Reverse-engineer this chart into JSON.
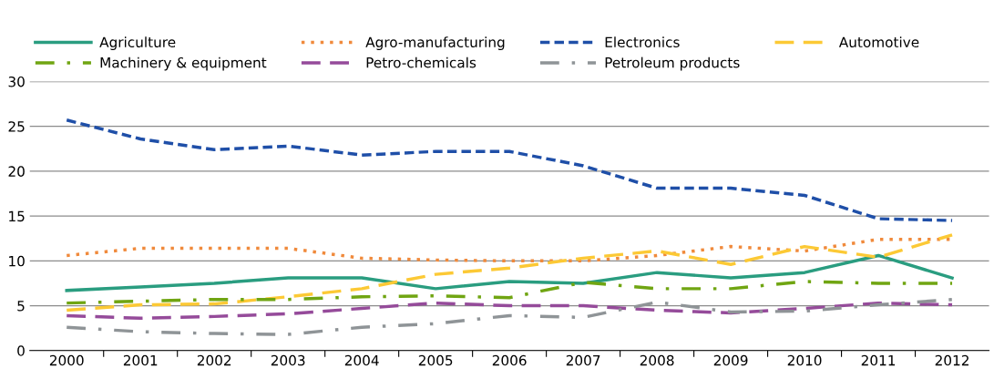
{
  "chart_data": {
    "type": "line",
    "categories": [
      "2000",
      "2001",
      "2002",
      "2003",
      "2004",
      "2005",
      "2006",
      "2007",
      "2008",
      "2009",
      "2010",
      "2011",
      "2012"
    ],
    "ylim": [
      0,
      30
    ],
    "yticks": [
      0,
      5,
      10,
      15,
      20,
      25,
      30
    ],
    "grid": "y",
    "legend": "top",
    "marker": "none",
    "series": [
      {
        "name": "Agriculture",
        "color": "#2a9d80",
        "line_style": "solid",
        "values": [
          6.7,
          7.1,
          7.5,
          8.1,
          8.1,
          6.9,
          7.7,
          7.5,
          8.7,
          8.1,
          8.7,
          10.6,
          8.1
        ]
      },
      {
        "name": "Agro-manufacturing",
        "color": "#f08a3c",
        "line_style": "dotted",
        "values": [
          10.6,
          11.4,
          11.4,
          11.4,
          10.3,
          10.1,
          10.0,
          10.0,
          10.6,
          11.6,
          11.1,
          12.4,
          12.4
        ]
      },
      {
        "name": "Electronics",
        "color": "#1f4fa8",
        "line_style": "dashed",
        "values": [
          25.7,
          23.6,
          22.4,
          22.8,
          21.8,
          22.2,
          22.2,
          20.6,
          18.1,
          18.1,
          17.3,
          14.7,
          14.5
        ]
      },
      {
        "name": "Automotive",
        "color": "#fcc935",
        "line_style": "longdash",
        "values": [
          4.5,
          5.1,
          5.2,
          6.0,
          6.9,
          8.5,
          9.2,
          10.3,
          11.1,
          9.6,
          11.6,
          10.4,
          12.9
        ]
      },
      {
        "name": "Machinery & equipment",
        "color": "#70a512",
        "line_style": "dashdot",
        "values": [
          5.3,
          5.5,
          5.7,
          5.7,
          6.0,
          6.1,
          5.9,
          7.6,
          6.9,
          6.9,
          7.7,
          7.5,
          7.5
        ]
      },
      {
        "name": "Petro-chemicals",
        "color": "#954b9a",
        "line_style": "longdash",
        "values": [
          3.9,
          3.6,
          3.8,
          4.1,
          4.7,
          5.3,
          5.0,
          5.0,
          4.5,
          4.2,
          4.7,
          5.3,
          5.1
        ]
      },
      {
        "name": "Petroleum products",
        "color": "#8f9497",
        "line_style": "dashdot",
        "values": [
          2.6,
          2.1,
          1.9,
          1.8,
          2.6,
          3.0,
          3.9,
          3.7,
          5.4,
          4.3,
          4.4,
          5.1,
          5.7
        ]
      }
    ]
  }
}
